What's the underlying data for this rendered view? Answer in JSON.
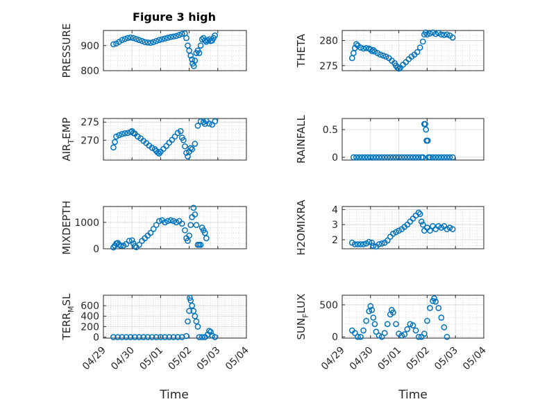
{
  "figure": {
    "title": "Figure 3 high",
    "xlabel": "Time"
  },
  "colors": {
    "marker": "#0072bd",
    "axes": "#262626"
  },
  "chart_data": [
    {
      "type": "scatter",
      "marker": "circle-open",
      "grid": true,
      "minor_grid": true,
      "ylabel": "PRESSURE",
      "yticks": [
        800,
        900
      ],
      "ylim": [
        800,
        960
      ],
      "xlim": [
        0,
        5
      ],
      "title": "Figure 3 high",
      "points": [
        [
          0.35,
          905
        ],
        [
          0.45,
          908
        ],
        [
          0.55,
          915
        ],
        [
          0.65,
          922
        ],
        [
          0.75,
          926
        ],
        [
          0.85,
          930
        ],
        [
          0.95,
          932
        ],
        [
          1.05,
          930
        ],
        [
          1.15,
          926
        ],
        [
          1.25,
          922
        ],
        [
          1.35,
          918
        ],
        [
          1.45,
          914
        ],
        [
          1.55,
          912
        ],
        [
          1.65,
          911
        ],
        [
          1.75,
          914
        ],
        [
          1.85,
          918
        ],
        [
          1.95,
          922
        ],
        [
          2.05,
          925
        ],
        [
          2.15,
          928
        ],
        [
          2.25,
          931
        ],
        [
          2.35,
          934
        ],
        [
          2.45,
          936
        ],
        [
          2.55,
          938
        ],
        [
          2.65,
          942
        ],
        [
          2.75,
          946
        ],
        [
          2.85,
          948
        ],
        [
          2.9,
          930
        ],
        [
          2.95,
          900
        ],
        [
          3.0,
          880
        ],
        [
          3.05,
          860
        ],
        [
          3.1,
          845
        ],
        [
          3.12,
          828
        ],
        [
          3.16,
          818
        ],
        [
          3.2,
          840
        ],
        [
          3.25,
          870
        ],
        [
          3.3,
          880
        ],
        [
          3.35,
          870
        ],
        [
          3.4,
          900
        ],
        [
          3.45,
          925
        ],
        [
          3.5,
          930
        ],
        [
          3.55,
          920
        ],
        [
          3.6,
          915
        ],
        [
          3.65,
          920
        ],
        [
          3.7,
          925
        ],
        [
          3.75,
          918
        ],
        [
          3.8,
          920
        ],
        [
          3.85,
          930
        ],
        [
          3.9,
          940
        ]
      ]
    },
    {
      "type": "scatter",
      "marker": "circle-open",
      "grid": true,
      "minor_grid": true,
      "ylabel": "THETA",
      "yticks": [
        275,
        280
      ],
      "ylim": [
        274,
        282
      ],
      "xlim": [
        0,
        5
      ],
      "points": [
        [
          0.35,
          276.5
        ],
        [
          0.4,
          277.5
        ],
        [
          0.45,
          278.5
        ],
        [
          0.5,
          279.3
        ],
        [
          0.55,
          279
        ],
        [
          0.65,
          278.6
        ],
        [
          0.75,
          278.4
        ],
        [
          0.85,
          278.5
        ],
        [
          0.95,
          278.4
        ],
        [
          1.0,
          278.2
        ],
        [
          1.05,
          277.9
        ],
        [
          1.1,
          278.1
        ],
        [
          1.15,
          277.8
        ],
        [
          1.25,
          277.5
        ],
        [
          1.35,
          277.2
        ],
        [
          1.45,
          277
        ],
        [
          1.55,
          276.8
        ],
        [
          1.65,
          276.5
        ],
        [
          1.75,
          276
        ],
        [
          1.85,
          275.5
        ],
        [
          1.9,
          275
        ],
        [
          1.95,
          274.6
        ],
        [
          2.0,
          274.4
        ],
        [
          2.05,
          274.6
        ],
        [
          2.15,
          275.2
        ],
        [
          2.25,
          275.7
        ],
        [
          2.35,
          276.3
        ],
        [
          2.45,
          276.8
        ],
        [
          2.55,
          277.2
        ],
        [
          2.65,
          277.7
        ],
        [
          2.75,
          278.6
        ],
        [
          2.85,
          279.8
        ],
        [
          2.9,
          281.2
        ],
        [
          2.95,
          281.6
        ],
        [
          3.0,
          281.2
        ],
        [
          3.1,
          281.4
        ],
        [
          3.2,
          281.6
        ],
        [
          3.3,
          281.3
        ],
        [
          3.4,
          281.5
        ],
        [
          3.5,
          281.2
        ],
        [
          3.6,
          281.1
        ],
        [
          3.7,
          281.2
        ],
        [
          3.8,
          281.0
        ],
        [
          3.9,
          280.6
        ]
      ]
    },
    {
      "type": "scatter",
      "marker": "circle-open",
      "grid": true,
      "minor_grid": true,
      "ylabel": "AIR_TEMP",
      "yticks": [
        270,
        275
      ],
      "ylim": [
        264.5,
        276
      ],
      "xlim": [
        0,
        5
      ],
      "points": [
        [
          0.35,
          268
        ],
        [
          0.4,
          269.5
        ],
        [
          0.45,
          271
        ],
        [
          0.55,
          271.4
        ],
        [
          0.65,
          271.7
        ],
        [
          0.75,
          271.9
        ],
        [
          0.85,
          272
        ],
        [
          0.95,
          272.3
        ],
        [
          1.0,
          272.5
        ],
        [
          1.05,
          272
        ],
        [
          1.1,
          271.8
        ],
        [
          1.2,
          271
        ],
        [
          1.3,
          270.5
        ],
        [
          1.4,
          269.8
        ],
        [
          1.5,
          269.2
        ],
        [
          1.6,
          268.5
        ],
        [
          1.7,
          267.9
        ],
        [
          1.8,
          267.5
        ],
        [
          1.85,
          267
        ],
        [
          1.9,
          266.6
        ],
        [
          1.95,
          266.3
        ],
        [
          2.0,
          266.8
        ],
        [
          2.1,
          267.6
        ],
        [
          2.2,
          268.4
        ],
        [
          2.3,
          269.3
        ],
        [
          2.4,
          270.1
        ],
        [
          2.5,
          271
        ],
        [
          2.6,
          272
        ],
        [
          2.7,
          272.5
        ],
        [
          2.75,
          270.7
        ],
        [
          2.8,
          270
        ],
        [
          2.85,
          268.3
        ],
        [
          2.9,
          266.5
        ],
        [
          2.95,
          265.5
        ],
        [
          3.0,
          266.8
        ],
        [
          3.05,
          267.8
        ],
        [
          3.1,
          267.5
        ],
        [
          3.2,
          269
        ],
        [
          3.3,
          274
        ],
        [
          3.4,
          275.2
        ],
        [
          3.5,
          275
        ],
        [
          3.55,
          274.5
        ],
        [
          3.6,
          275.3
        ],
        [
          3.7,
          274.6
        ],
        [
          3.8,
          274.3
        ],
        [
          3.9,
          275.2
        ]
      ]
    },
    {
      "type": "scatter",
      "marker": "circle-open",
      "grid": true,
      "minor_grid": false,
      "ylabel": "RAINFALL",
      "yticks": [
        0,
        0.5
      ],
      "ylim": [
        -0.05,
        0.7
      ],
      "xlim": [
        0,
        5
      ],
      "points": [
        [
          0.4,
          0
        ],
        [
          0.5,
          0
        ],
        [
          0.6,
          0
        ],
        [
          0.7,
          0
        ],
        [
          0.8,
          0
        ],
        [
          0.9,
          0
        ],
        [
          1.0,
          0
        ],
        [
          1.1,
          0
        ],
        [
          1.2,
          0
        ],
        [
          1.3,
          0
        ],
        [
          1.4,
          0
        ],
        [
          1.5,
          0
        ],
        [
          1.6,
          0
        ],
        [
          1.7,
          0
        ],
        [
          1.8,
          0
        ],
        [
          1.9,
          0
        ],
        [
          2.0,
          0
        ],
        [
          2.1,
          0
        ],
        [
          2.2,
          0
        ],
        [
          2.3,
          0
        ],
        [
          2.4,
          0
        ],
        [
          2.5,
          0
        ],
        [
          2.6,
          0
        ],
        [
          2.7,
          0
        ],
        [
          2.8,
          0
        ],
        [
          2.85,
          0
        ],
        [
          2.9,
          0.6
        ],
        [
          2.93,
          0.6
        ],
        [
          2.96,
          0.5
        ],
        [
          2.98,
          0.3
        ],
        [
          3.02,
          0.3
        ],
        [
          3.05,
          0
        ],
        [
          3.1,
          0
        ],
        [
          3.2,
          0
        ],
        [
          3.3,
          0
        ],
        [
          3.4,
          0
        ],
        [
          3.5,
          0
        ],
        [
          3.6,
          0
        ],
        [
          3.7,
          0
        ],
        [
          3.8,
          0
        ],
        [
          3.9,
          0
        ]
      ]
    },
    {
      "type": "scatter",
      "marker": "circle-open",
      "grid": true,
      "minor_grid": true,
      "ylabel": "MIXDEPTH",
      "yticks": [
        0,
        1000
      ],
      "ylim": [
        0,
        1600
      ],
      "xlim": [
        0,
        5
      ],
      "points": [
        [
          0.35,
          50
        ],
        [
          0.4,
          120
        ],
        [
          0.45,
          200
        ],
        [
          0.5,
          220
        ],
        [
          0.55,
          160
        ],
        [
          0.6,
          120
        ],
        [
          0.7,
          120
        ],
        [
          0.8,
          180
        ],
        [
          0.9,
          300
        ],
        [
          1.0,
          320
        ],
        [
          1.05,
          200
        ],
        [
          1.1,
          100
        ],
        [
          1.15,
          60
        ],
        [
          1.25,
          150
        ],
        [
          1.35,
          300
        ],
        [
          1.45,
          400
        ],
        [
          1.55,
          500
        ],
        [
          1.65,
          600
        ],
        [
          1.75,
          750
        ],
        [
          1.85,
          900
        ],
        [
          1.95,
          1050
        ],
        [
          2.05,
          1080
        ],
        [
          2.15,
          1000
        ],
        [
          2.25,
          1050
        ],
        [
          2.35,
          1080
        ],
        [
          2.45,
          1050
        ],
        [
          2.55,
          1000
        ],
        [
          2.65,
          1050
        ],
        [
          2.75,
          950
        ],
        [
          2.85,
          700
        ],
        [
          2.9,
          400
        ],
        [
          2.95,
          300
        ],
        [
          3.0,
          500
        ],
        [
          3.05,
          900
        ],
        [
          3.1,
          1200
        ],
        [
          3.15,
          1550
        ],
        [
          3.2,
          1300
        ],
        [
          3.25,
          900
        ],
        [
          3.3,
          150
        ],
        [
          3.35,
          150
        ],
        [
          3.4,
          150
        ],
        [
          3.45,
          800
        ],
        [
          3.5,
          700
        ],
        [
          3.55,
          600
        ],
        [
          3.6,
          400
        ]
      ]
    },
    {
      "type": "scatter",
      "marker": "circle-open",
      "grid": true,
      "minor_grid": true,
      "ylabel": "H2OMIXRA",
      "yticks": [
        2,
        3,
        4
      ],
      "ylim": [
        1.4,
        4.2
      ],
      "xlim": [
        0,
        5
      ],
      "points": [
        [
          0.35,
          1.8
        ],
        [
          0.45,
          1.7
        ],
        [
          0.55,
          1.7
        ],
        [
          0.65,
          1.7
        ],
        [
          0.75,
          1.7
        ],
        [
          0.85,
          1.75
        ],
        [
          0.95,
          1.85
        ],
        [
          1.05,
          1.8
        ],
        [
          1.1,
          1.6
        ],
        [
          1.2,
          1.55
        ],
        [
          1.3,
          1.7
        ],
        [
          1.4,
          1.75
        ],
        [
          1.5,
          1.8
        ],
        [
          1.6,
          1.95
        ],
        [
          1.7,
          2.2
        ],
        [
          1.8,
          2.4
        ],
        [
          1.9,
          2.5
        ],
        [
          2.0,
          2.6
        ],
        [
          2.1,
          2.7
        ],
        [
          2.2,
          2.85
        ],
        [
          2.3,
          3.0
        ],
        [
          2.4,
          3.2
        ],
        [
          2.5,
          3.4
        ],
        [
          2.6,
          3.6
        ],
        [
          2.7,
          3.8
        ],
        [
          2.75,
          3.7
        ],
        [
          2.8,
          3.2
        ],
        [
          2.85,
          3.0
        ],
        [
          2.9,
          2.6
        ],
        [
          3.0,
          2.8
        ],
        [
          3.1,
          2.6
        ],
        [
          3.2,
          2.9
        ],
        [
          3.3,
          2.7
        ],
        [
          3.4,
          2.9
        ],
        [
          3.5,
          2.8
        ],
        [
          3.6,
          2.9
        ],
        [
          3.7,
          2.7
        ],
        [
          3.8,
          2.8
        ],
        [
          3.9,
          2.7
        ]
      ]
    },
    {
      "type": "scatter",
      "marker": "circle-open",
      "grid": true,
      "minor_grid": true,
      "ylabel": "TERR_MSL",
      "yticks": [
        0,
        200,
        400,
        600
      ],
      "ylim": [
        -20,
        800
      ],
      "xlim": [
        0,
        5
      ],
      "points": [
        [
          0.35,
          0
        ],
        [
          0.5,
          0
        ],
        [
          0.65,
          0
        ],
        [
          0.8,
          0
        ],
        [
          0.95,
          0
        ],
        [
          1.1,
          0
        ],
        [
          1.25,
          0
        ],
        [
          1.4,
          0
        ],
        [
          1.55,
          0
        ],
        [
          1.7,
          0
        ],
        [
          1.85,
          0
        ],
        [
          2.0,
          0
        ],
        [
          2.15,
          0
        ],
        [
          2.3,
          0
        ],
        [
          2.45,
          0
        ],
        [
          2.6,
          0
        ],
        [
          2.75,
          0
        ],
        [
          2.9,
          20
        ],
        [
          2.95,
          300
        ],
        [
          3.0,
          500
        ],
        [
          3.02,
          750
        ],
        [
          3.05,
          700
        ],
        [
          3.1,
          600
        ],
        [
          3.15,
          500
        ],
        [
          3.2,
          400
        ],
        [
          3.25,
          300
        ],
        [
          3.3,
          200
        ],
        [
          3.35,
          0
        ],
        [
          3.45,
          0
        ],
        [
          3.55,
          0
        ],
        [
          3.65,
          50
        ],
        [
          3.7,
          120
        ],
        [
          3.75,
          100
        ],
        [
          3.8,
          30
        ],
        [
          3.9,
          0
        ]
      ]
    },
    {
      "type": "scatter",
      "marker": "circle-open",
      "grid": true,
      "minor_grid": true,
      "ylabel": "SUN_FLUX",
      "yticks": [
        0,
        500
      ],
      "ylim": [
        -20,
        650
      ],
      "xlim": [
        0,
        5
      ],
      "points": [
        [
          0.35,
          100
        ],
        [
          0.45,
          60
        ],
        [
          0.55,
          0
        ],
        [
          0.65,
          0
        ],
        [
          0.75,
          100
        ],
        [
          0.85,
          250
        ],
        [
          0.95,
          400
        ],
        [
          1.0,
          480
        ],
        [
          1.05,
          420
        ],
        [
          1.1,
          300
        ],
        [
          1.15,
          200
        ],
        [
          1.2,
          80
        ],
        [
          1.3,
          20
        ],
        [
          1.4,
          0
        ],
        [
          1.5,
          60
        ],
        [
          1.6,
          200
        ],
        [
          1.7,
          350
        ],
        [
          1.75,
          420
        ],
        [
          1.8,
          380
        ],
        [
          1.9,
          200
        ],
        [
          2.0,
          50
        ],
        [
          2.1,
          20
        ],
        [
          2.2,
          40
        ],
        [
          2.3,
          120
        ],
        [
          2.4,
          200
        ],
        [
          2.5,
          180
        ],
        [
          2.6,
          100
        ],
        [
          2.7,
          0
        ],
        [
          2.8,
          0
        ],
        [
          2.9,
          50
        ],
        [
          3.0,
          250
        ],
        [
          3.1,
          450
        ],
        [
          3.2,
          560
        ],
        [
          3.25,
          600
        ],
        [
          3.3,
          550
        ],
        [
          3.4,
          450
        ],
        [
          3.5,
          300
        ],
        [
          3.6,
          150
        ],
        [
          3.7,
          0
        ]
      ]
    }
  ],
  "x_tick_labels": [
    "04/29",
    "04/30",
    "05/01",
    "05/02",
    "05/03",
    "05/04"
  ]
}
